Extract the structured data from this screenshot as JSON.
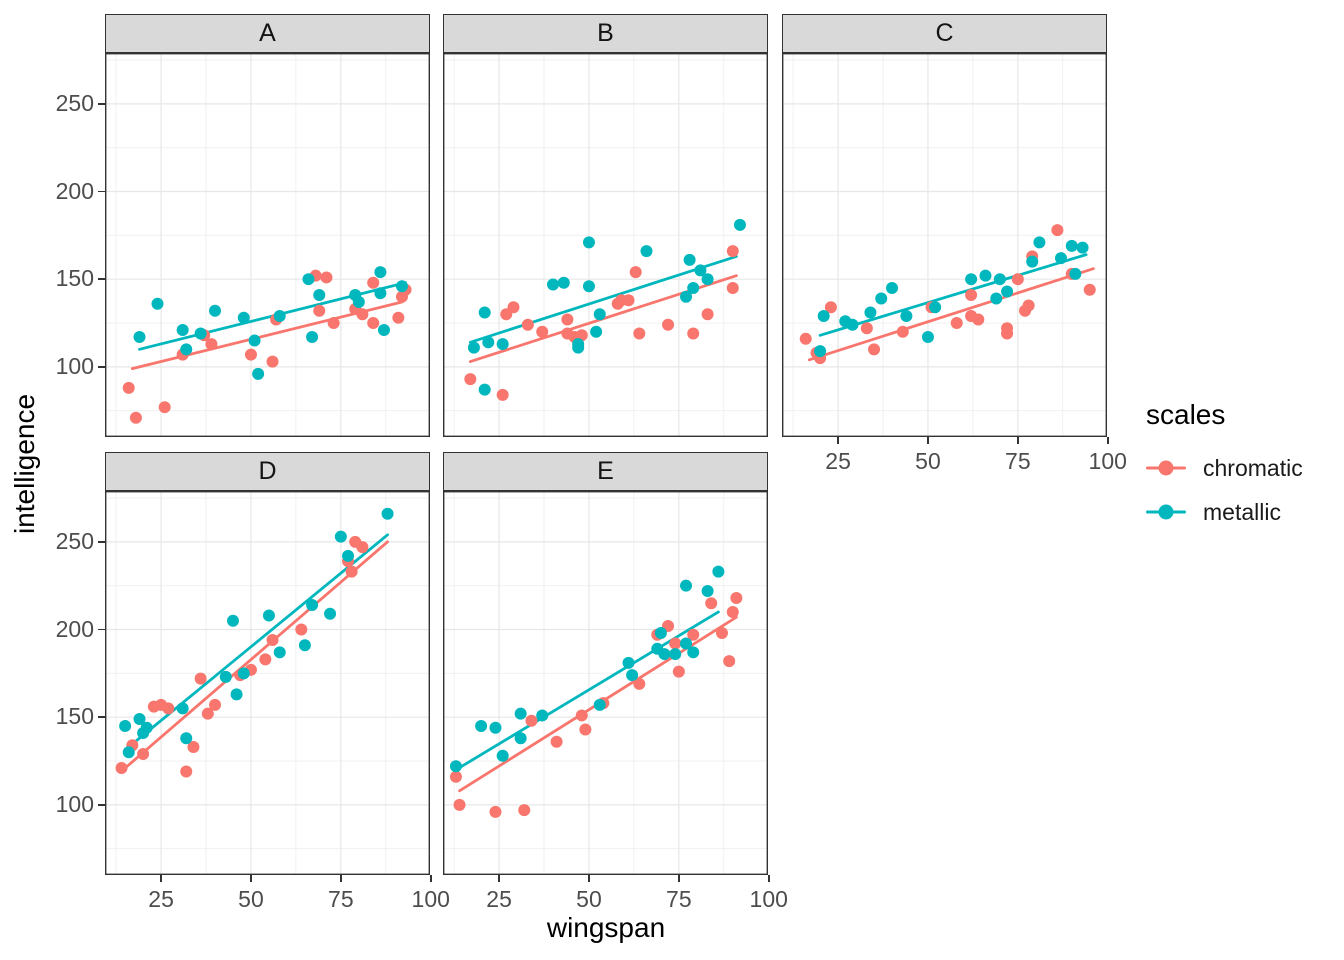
{
  "figure": {
    "x_axis": {
      "title": "wingspan",
      "ticks": [
        "25",
        "50",
        "75",
        "100"
      ]
    },
    "y_axis": {
      "title": "intelligence",
      "ticks": [
        "100",
        "150",
        "200",
        "250"
      ]
    },
    "legend": {
      "title": "scales",
      "items": [
        {
          "label": "chromatic",
          "color": "#f8766d"
        },
        {
          "label": "metallic",
          "color": "#00b7bd"
        }
      ]
    }
  },
  "chart_data": {
    "type": "scatter",
    "title": "",
    "xlabel": "wingspan",
    "ylabel": "intelligence",
    "xlim": [
      9.4,
      99.8
    ],
    "ylim": [
      60,
      279
    ],
    "x_ticks": [
      25,
      50,
      75,
      100
    ],
    "y_ticks": [
      100,
      150,
      200,
      250
    ],
    "grid": "major+minor",
    "legend_position": "right",
    "facet_grid": {
      "rows": 2,
      "cols": 3,
      "shared_axes": true
    },
    "facets": [
      {
        "label": "A",
        "series": [
          {
            "name": "chromatic",
            "color": "#f8766d",
            "points": [
              [
                16,
                88
              ],
              [
                18,
                71
              ],
              [
                26,
                77
              ],
              [
                31,
                107
              ],
              [
                37,
                118
              ],
              [
                39,
                113
              ],
              [
                50,
                107
              ],
              [
                56,
                103
              ],
              [
                57,
                127
              ],
              [
                68,
                152
              ],
              [
                71,
                151
              ],
              [
                69,
                132
              ],
              [
                73,
                125
              ],
              [
                79,
                133
              ],
              [
                81,
                130
              ],
              [
                84,
                148
              ],
              [
                84,
                125
              ],
              [
                91,
                128
              ],
              [
                92,
                140
              ],
              [
                93,
                144
              ]
            ],
            "trend": [
              [
                17,
                99
              ],
              [
                92,
                137
              ]
            ]
          },
          {
            "name": "metallic",
            "color": "#00b7bd",
            "points": [
              [
                19,
                117
              ],
              [
                24,
                136
              ],
              [
                31,
                121
              ],
              [
                32,
                110
              ],
              [
                36,
                119
              ],
              [
                40,
                132
              ],
              [
                48,
                128
              ],
              [
                51,
                115
              ],
              [
                52,
                96
              ],
              [
                58,
                129
              ],
              [
                66,
                150
              ],
              [
                67,
                117
              ],
              [
                69,
                141
              ],
              [
                79,
                141
              ],
              [
                80,
                137
              ],
              [
                86,
                154
              ],
              [
                86,
                142
              ],
              [
                87,
                121
              ],
              [
                92,
                146
              ]
            ],
            "trend": [
              [
                19,
                110
              ],
              [
                93,
                148
              ]
            ]
          }
        ]
      },
      {
        "label": "B",
        "series": [
          {
            "name": "chromatic",
            "color": "#f8766d",
            "points": [
              [
                17,
                93
              ],
              [
                26,
                84
              ],
              [
                27,
                130
              ],
              [
                29,
                134
              ],
              [
                33,
                124
              ],
              [
                37,
                120
              ],
              [
                44,
                127
              ],
              [
                44,
                119
              ],
              [
                46,
                117
              ],
              [
                48,
                118
              ],
              [
                58,
                136
              ],
              [
                59,
                138
              ],
              [
                61,
                138
              ],
              [
                63,
                154
              ],
              [
                64,
                119
              ],
              [
                72,
                124
              ],
              [
                79,
                119
              ],
              [
                83,
                130
              ],
              [
                90,
                166
              ],
              [
                90,
                145
              ]
            ],
            "trend": [
              [
                17,
                103
              ],
              [
                91,
                152
              ]
            ]
          },
          {
            "name": "metallic",
            "color": "#00b7bd",
            "points": [
              [
                18,
                111
              ],
              [
                21,
                131
              ],
              [
                21,
                87
              ],
              [
                22,
                114
              ],
              [
                26,
                113
              ],
              [
                40,
                147
              ],
              [
                43,
                148
              ],
              [
                47,
                113
              ],
              [
                47,
                111
              ],
              [
                50,
                171
              ],
              [
                50,
                146
              ],
              [
                52,
                120
              ],
              [
                53,
                130
              ],
              [
                66,
                166
              ],
              [
                77,
                140
              ],
              [
                78,
                161
              ],
              [
                79,
                145
              ],
              [
                81,
                155
              ],
              [
                83,
                150
              ],
              [
                92,
                181
              ]
            ],
            "trend": [
              [
                17,
                114
              ],
              [
                91,
                163
              ]
            ]
          }
        ]
      },
      {
        "label": "C",
        "series": [
          {
            "name": "chromatic",
            "color": "#f8766d",
            "points": [
              [
                16,
                116
              ],
              [
                19,
                108
              ],
              [
                20,
                105
              ],
              [
                23,
                134
              ],
              [
                33,
                122
              ],
              [
                35,
                110
              ],
              [
                43,
                120
              ],
              [
                51,
                134
              ],
              [
                58,
                125
              ],
              [
                62,
                129
              ],
              [
                62,
                141
              ],
              [
                64,
                127
              ],
              [
                72,
                122
              ],
              [
                72,
                119
              ],
              [
                75,
                150
              ],
              [
                77,
                132
              ],
              [
                78,
                135
              ],
              [
                79,
                163
              ],
              [
                86,
                178
              ],
              [
                90,
                153
              ],
              [
                95,
                144
              ]
            ],
            "trend": [
              [
                17,
                104
              ],
              [
                96,
                156
              ]
            ]
          },
          {
            "name": "metallic",
            "color": "#00b7bd",
            "points": [
              [
                20,
                109
              ],
              [
                21,
                129
              ],
              [
                27,
                126
              ],
              [
                29,
                124
              ],
              [
                34,
                131
              ],
              [
                37,
                139
              ],
              [
                40,
                145
              ],
              [
                44,
                129
              ],
              [
                50,
                117
              ],
              [
                52,
                134
              ],
              [
                62,
                150
              ],
              [
                66,
                152
              ],
              [
                69,
                139
              ],
              [
                70,
                150
              ],
              [
                72,
                143
              ],
              [
                79,
                160
              ],
              [
                81,
                171
              ],
              [
                87,
                162
              ],
              [
                90,
                169
              ],
              [
                91,
                153
              ],
              [
                93,
                168
              ]
            ],
            "trend": [
              [
                20,
                118
              ],
              [
                94,
                164
              ]
            ]
          }
        ]
      },
      {
        "label": "D",
        "series": [
          {
            "name": "chromatic",
            "color": "#f8766d",
            "points": [
              [
                14,
                121
              ],
              [
                17,
                134
              ],
              [
                20,
                129
              ],
              [
                23,
                156
              ],
              [
                25,
                157
              ],
              [
                27,
                155
              ],
              [
                32,
                119
              ],
              [
                34,
                133
              ],
              [
                36,
                172
              ],
              [
                38,
                152
              ],
              [
                40,
                157
              ],
              [
                47,
                174
              ],
              [
                50,
                177
              ],
              [
                54,
                183
              ],
              [
                56,
                194
              ],
              [
                64,
                200
              ],
              [
                77,
                239
              ],
              [
                78,
                233
              ],
              [
                79,
                250
              ],
              [
                81,
                247
              ]
            ],
            "trend": [
              [
                15,
                121
              ],
              [
                88,
                250
              ]
            ]
          },
          {
            "name": "metallic",
            "color": "#00b7bd",
            "points": [
              [
                15,
                145
              ],
              [
                16,
                130
              ],
              [
                19,
                149
              ],
              [
                20,
                141
              ],
              [
                21,
                144
              ],
              [
                31,
                155
              ],
              [
                32,
                138
              ],
              [
                43,
                173
              ],
              [
                45,
                205
              ],
              [
                46,
                163
              ],
              [
                48,
                175
              ],
              [
                55,
                208
              ],
              [
                58,
                187
              ],
              [
                65,
                191
              ],
              [
                67,
                214
              ],
              [
                72,
                209
              ],
              [
                75,
                253
              ],
              [
                77,
                242
              ],
              [
                88,
                266
              ]
            ],
            "trend": [
              [
                16,
                133
              ],
              [
                88,
                254
              ]
            ]
          }
        ]
      },
      {
        "label": "E",
        "series": [
          {
            "name": "chromatic",
            "color": "#f8766d",
            "points": [
              [
                13,
                116
              ],
              [
                14,
                100
              ],
              [
                24,
                96
              ],
              [
                32,
                97
              ],
              [
                34,
                148
              ],
              [
                41,
                136
              ],
              [
                48,
                151
              ],
              [
                49,
                143
              ],
              [
                54,
                158
              ],
              [
                64,
                169
              ],
              [
                69,
                197
              ],
              [
                72,
                202
              ],
              [
                74,
                192
              ],
              [
                75,
                176
              ],
              [
                79,
                197
              ],
              [
                84,
                215
              ],
              [
                87,
                198
              ],
              [
                89,
                182
              ],
              [
                90,
                210
              ],
              [
                91,
                218
              ]
            ],
            "trend": [
              [
                14,
                108
              ],
              [
                91,
                207
              ]
            ]
          },
          {
            "name": "metallic",
            "color": "#00b7bd",
            "points": [
              [
                13,
                122
              ],
              [
                20,
                145
              ],
              [
                24,
                144
              ],
              [
                26,
                128
              ],
              [
                31,
                152
              ],
              [
                31,
                138
              ],
              [
                37,
                151
              ],
              [
                53,
                157
              ],
              [
                61,
                181
              ],
              [
                62,
                174
              ],
              [
                69,
                189
              ],
              [
                70,
                198
              ],
              [
                71,
                186
              ],
              [
                74,
                186
              ],
              [
                77,
                225
              ],
              [
                77,
                192
              ],
              [
                79,
                187
              ],
              [
                83,
                222
              ],
              [
                86,
                233
              ]
            ],
            "trend": [
              [
                13,
                120
              ],
              [
                86,
                210
              ]
            ]
          }
        ]
      }
    ]
  }
}
